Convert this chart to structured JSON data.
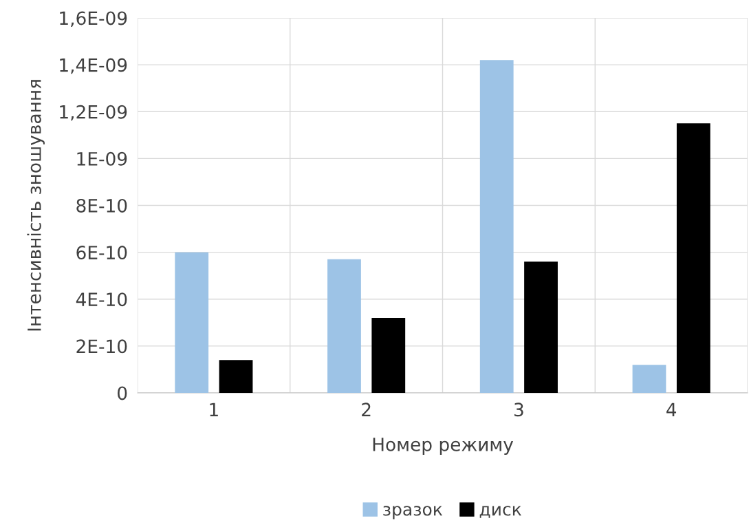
{
  "chart_data": {
    "type": "bar",
    "xlabel": "Номер режиму",
    "ylabel": "Інтенсивність зношування",
    "categories": [
      "1",
      "2",
      "3",
      "4"
    ],
    "series": [
      {
        "name": "зразок",
        "color": "#9dc3e6",
        "values": [
          6e-10,
          5.7e-10,
          1.42e-09,
          1.2e-10
        ]
      },
      {
        "name": "диск",
        "color": "#000000",
        "values": [
          1.4e-10,
          3.2e-10,
          5.6e-10,
          1.15e-09
        ]
      }
    ],
    "ylim": [
      0,
      1.6e-09
    ],
    "yticks": [
      0,
      {
        "value": 2e-10,
        "label": "2E-10"
      },
      {
        "value": 4e-10,
        "label": "4E-10"
      },
      {
        "value": 6e-10,
        "label": "6E-10"
      },
      {
        "value": 8e-10,
        "label": "8E-10"
      },
      {
        "value": 1e-09,
        "label": "1E-09"
      },
      {
        "value": 1.2e-09,
        "label": "1,2E-09"
      },
      {
        "value": 1.4e-09,
        "label": "1,4E-09"
      },
      {
        "value": 1.6e-09,
        "label": "1,6E-09"
      }
    ],
    "grid": true,
    "legend": "bottom"
  }
}
